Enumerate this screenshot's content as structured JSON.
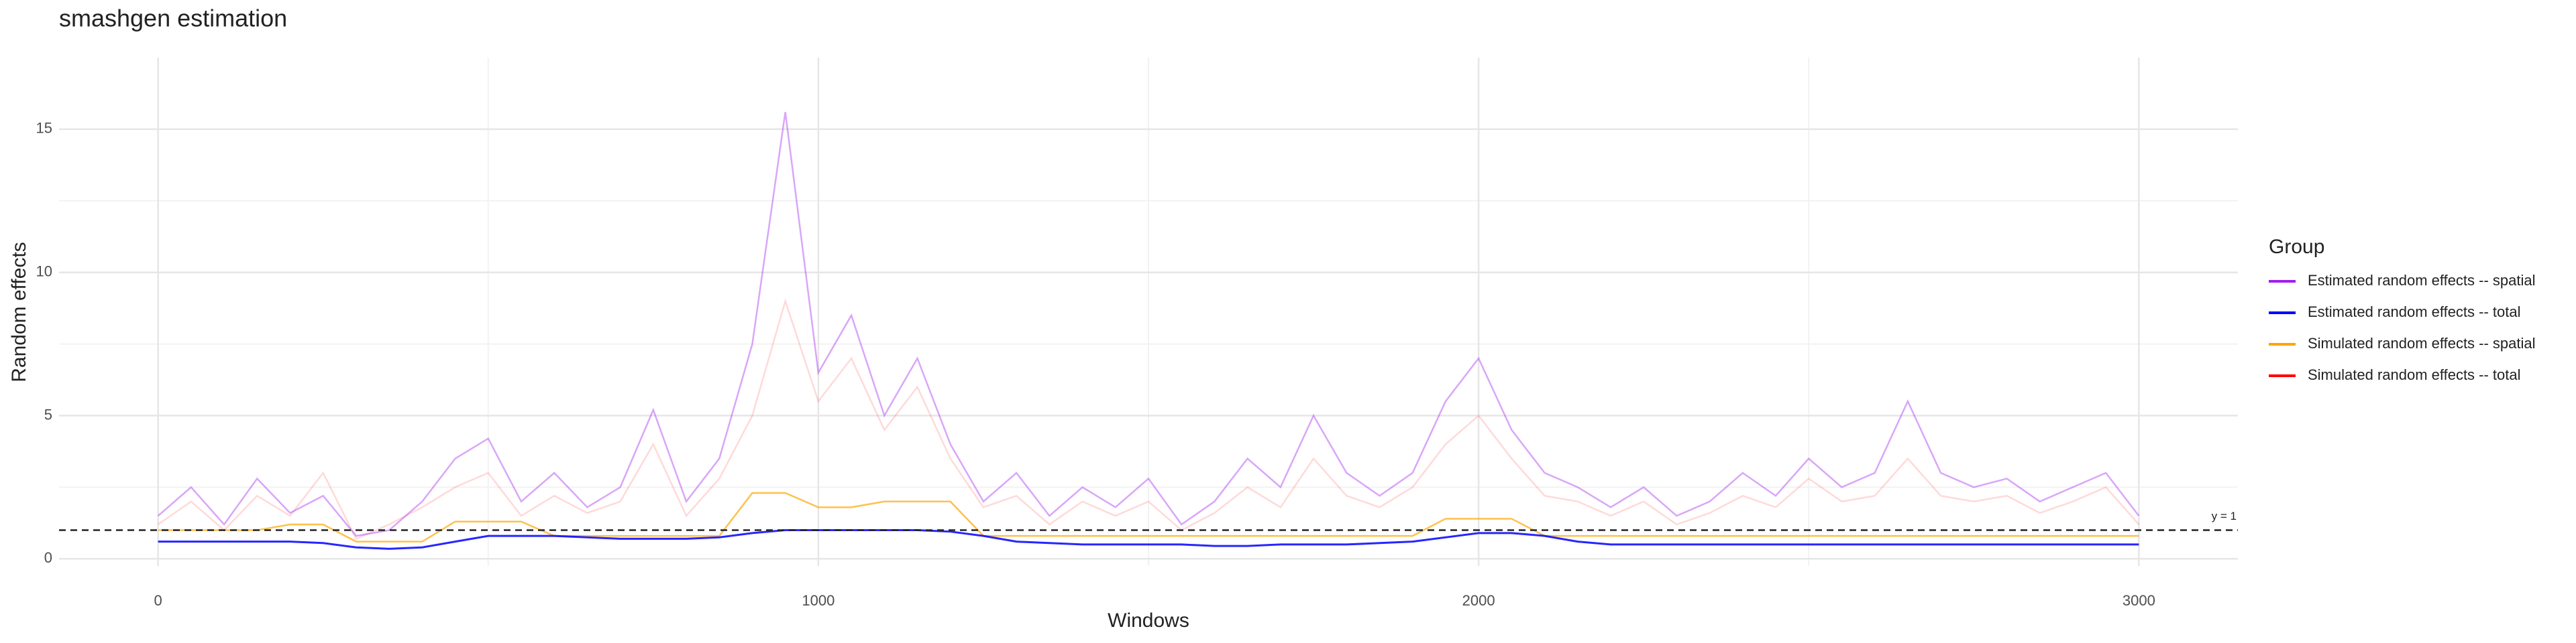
{
  "chart_data": {
    "type": "line",
    "title": "smashgen estimation",
    "x_label": "Windows",
    "y_label": "Random effects",
    "legend_title": "Group",
    "x": [
      0,
      50,
      100,
      150,
      200,
      250,
      300,
      350,
      400,
      450,
      500,
      550,
      600,
      650,
      700,
      750,
      800,
      850,
      900,
      950,
      1000,
      1050,
      1100,
      1150,
      1200,
      1250,
      1300,
      1350,
      1400,
      1450,
      1500,
      1550,
      1600,
      1650,
      1700,
      1750,
      1800,
      1850,
      1900,
      1950,
      2000,
      2050,
      2100,
      2150,
      2200,
      2250,
      2300,
      2350,
      2400,
      2450,
      2500,
      2550,
      2600,
      2650,
      2700,
      2750,
      2800,
      2850,
      2900,
      2950,
      3000
    ],
    "series": [
      {
        "name": "Estimated random effects -- spatial",
        "color": "#a020f0",
        "values": [
          1.5,
          2.5,
          1.2,
          2.8,
          1.6,
          2.2,
          0.8,
          1.0,
          2.0,
          3.5,
          4.2,
          2.0,
          3.0,
          1.8,
          2.5,
          5.2,
          2.0,
          3.5,
          7.5,
          15.6,
          6.5,
          8.5,
          5.0,
          7.0,
          4.0,
          2.0,
          3.0,
          1.5,
          2.5,
          1.8,
          2.8,
          1.2,
          2.0,
          3.5,
          2.5,
          5.0,
          3.0,
          2.2,
          3.0,
          5.5,
          7.0,
          4.5,
          3.0,
          2.5,
          1.8,
          2.5,
          1.5,
          2.0,
          3.0,
          2.2,
          3.5,
          2.5,
          3.0,
          5.5,
          3.0,
          2.5,
          2.8,
          2.0,
          2.5,
          3.0,
          1.5
        ]
      },
      {
        "name": "Estimated random effects -- total",
        "color": "#0000ff",
        "values": [
          0.6,
          0.6,
          0.6,
          0.6,
          0.6,
          0.55,
          0.4,
          0.35,
          0.4,
          0.6,
          0.8,
          0.8,
          0.8,
          0.75,
          0.7,
          0.7,
          0.7,
          0.75,
          0.9,
          1.0,
          1.0,
          1.0,
          1.0,
          1.0,
          0.95,
          0.8,
          0.6,
          0.55,
          0.5,
          0.5,
          0.5,
          0.5,
          0.45,
          0.45,
          0.5,
          0.5,
          0.5,
          0.55,
          0.6,
          0.75,
          0.9,
          0.9,
          0.8,
          0.6,
          0.5,
          0.5,
          0.5,
          0.5,
          0.5,
          0.5,
          0.5,
          0.5,
          0.5,
          0.5,
          0.5,
          0.5,
          0.5,
          0.5,
          0.5,
          0.5,
          0.5
        ]
      },
      {
        "name": "Simulated random effects -- spatial",
        "color": "#ffa500",
        "values": [
          1.0,
          1.0,
          1.0,
          1.0,
          1.2,
          1.2,
          0.6,
          0.6,
          0.6,
          1.3,
          1.3,
          1.3,
          0.8,
          0.8,
          0.8,
          0.8,
          0.8,
          0.8,
          2.3,
          2.3,
          1.8,
          1.8,
          2.0,
          2.0,
          2.0,
          0.8,
          0.8,
          0.8,
          0.8,
          0.8,
          0.8,
          0.8,
          0.8,
          0.8,
          0.8,
          0.8,
          0.8,
          0.8,
          0.8,
          1.4,
          1.4,
          1.4,
          0.8,
          0.8,
          0.8,
          0.8,
          0.8,
          0.8,
          0.8,
          0.8,
          0.8,
          0.8,
          0.8,
          0.8,
          0.8,
          0.8,
          0.8,
          0.8,
          0.8,
          0.8,
          0.8
        ]
      },
      {
        "name": "Simulated random effects -- total",
        "color": "#ff0000",
        "values": [
          1.2,
          2.0,
          1.0,
          2.2,
          1.5,
          3.0,
          0.7,
          1.2,
          1.8,
          2.5,
          3.0,
          1.5,
          2.2,
          1.6,
          2.0,
          4.0,
          1.5,
          2.8,
          5.0,
          9.0,
          5.5,
          7.0,
          4.5,
          6.0,
          3.5,
          1.8,
          2.2,
          1.2,
          2.0,
          1.5,
          2.0,
          1.0,
          1.6,
          2.5,
          1.8,
          3.5,
          2.2,
          1.8,
          2.5,
          4.0,
          5.0,
          3.5,
          2.2,
          2.0,
          1.5,
          2.0,
          1.2,
          1.6,
          2.2,
          1.8,
          2.8,
          2.0,
          2.2,
          3.5,
          2.2,
          2.0,
          2.2,
          1.6,
          2.0,
          2.5,
          1.2
        ]
      }
    ],
    "hline": 1,
    "hline_label": "y = 1",
    "xlim": [
      -150,
      3150
    ],
    "ylim": [
      -0.25,
      17.5
    ],
    "xticks": [
      0,
      1000,
      2000,
      3000
    ],
    "yticks": [
      0,
      5,
      10,
      15
    ],
    "grid": true,
    "legend_position": "right"
  }
}
